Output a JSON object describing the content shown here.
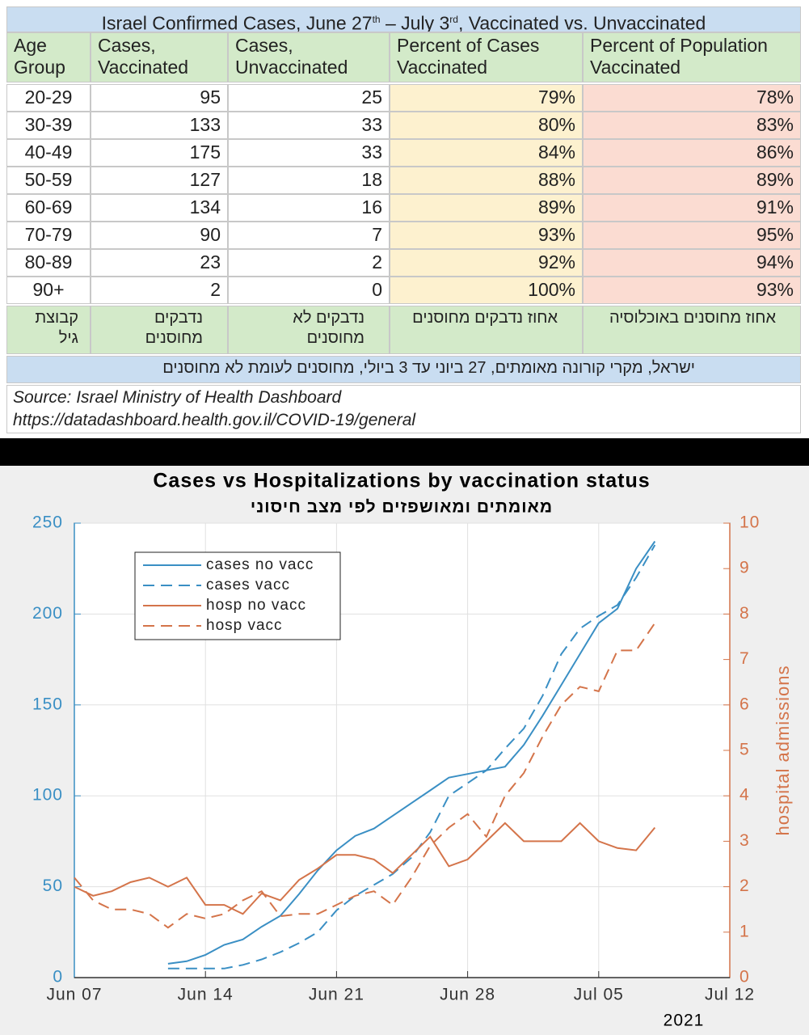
{
  "table": {
    "title_parts": [
      "Israel Confirmed Cases, June 27",
      "th",
      " – July 3",
      "rd",
      ", Vaccinated vs. Unvaccinated"
    ],
    "header": [
      "Age Group",
      "Cases, Vaccinated",
      "Cases, Unvaccinated",
      "Percent of Cases Vaccinated",
      "Percent of Population Vaccinated"
    ],
    "rows": [
      [
        "20-29",
        "95",
        "25",
        "79%",
        "78%"
      ],
      [
        "30-39",
        "133",
        "33",
        "80%",
        "83%"
      ],
      [
        "40-49",
        "175",
        "33",
        "84%",
        "86%"
      ],
      [
        "50-59",
        "127",
        "18",
        "88%",
        "89%"
      ],
      [
        "60-69",
        "134",
        "16",
        "89%",
        "91%"
      ],
      [
        "70-79",
        "90",
        "7",
        "93%",
        "95%"
      ],
      [
        "80-89",
        "23",
        "2",
        "92%",
        "94%"
      ],
      [
        "90+",
        "2",
        "0",
        "100%",
        "93%"
      ]
    ],
    "hebrew_header": [
      "קבוצת גיל",
      "נדבקים מחוסנים",
      "נדבקים לא מחוסנים",
      "אחוז נדבקים מחוסנים",
      "אחוז מחוסנים באוכלוסיה"
    ],
    "hebrew_caption": "ישראל, מקרי קורונה מאומתים, 27 ביוני עד 3 ביולי, מחוסנים לעומת לא מחוסנים",
    "source": [
      "Source: Israel Ministry of Health Dashboard",
      "https://datadashboard.health.gov.il/COVID-19/general"
    ]
  },
  "chart_data": {
    "type": "line",
    "title": "Cases vs Hospitalizations by vaccination status",
    "subtitle": "מאומתים ומאושפזים לפי מצב חיסוני",
    "y2label": "hospital admissions",
    "x_year_label": "2021",
    "x": [
      "2021-06-07",
      "2021-06-08",
      "2021-06-09",
      "2021-06-10",
      "2021-06-11",
      "2021-06-12",
      "2021-06-13",
      "2021-06-14",
      "2021-06-15",
      "2021-06-16",
      "2021-06-17",
      "2021-06-18",
      "2021-06-19",
      "2021-06-20",
      "2021-06-21",
      "2021-06-22",
      "2021-06-23",
      "2021-06-24",
      "2021-06-25",
      "2021-06-26",
      "2021-06-27",
      "2021-06-28",
      "2021-06-29",
      "2021-06-30",
      "2021-07-01",
      "2021-07-02",
      "2021-07-03",
      "2021-07-04",
      "2021-07-05",
      "2021-07-06",
      "2021-07-07",
      "2021-07-08"
    ],
    "xlim": [
      "2021-06-07",
      "2021-07-12"
    ],
    "xticks": [
      {
        "value": "2021-06-07",
        "label": "Jun 07"
      },
      {
        "value": "2021-06-14",
        "label": "Jun 14"
      },
      {
        "value": "2021-06-21",
        "label": "Jun 21"
      },
      {
        "value": "2021-06-28",
        "label": "Jun 28"
      },
      {
        "value": "2021-07-05",
        "label": "Jul 05"
      },
      {
        "value": "2021-07-12",
        "label": "Jul 12"
      }
    ],
    "ylim": [
      0,
      250
    ],
    "yticks": [
      0,
      50,
      100,
      150,
      200,
      250
    ],
    "y2lim": [
      0,
      10
    ],
    "y2ticks": [
      0,
      1,
      2,
      3,
      4,
      5,
      6,
      7,
      8,
      9,
      10
    ],
    "grid": true,
    "legend": "upper left",
    "series": [
      {
        "name": "cases no vacc",
        "color": "#3a8fc4",
        "dash": false,
        "values": [
          null,
          null,
          null,
          null,
          null,
          7.6,
          9,
          12.5,
          18,
          21,
          28,
          34,
          46,
          59,
          70,
          78,
          82,
          89,
          96,
          103,
          110,
          112,
          114,
          116,
          128,
          144,
          161,
          178,
          195,
          203,
          225,
          240
        ]
      },
      {
        "name": "cases vacc",
        "color": "#3a8fc4",
        "dash": true,
        "values": [
          null,
          null,
          null,
          null,
          null,
          5,
          5,
          5,
          5,
          7,
          10,
          14,
          19,
          25,
          37,
          45,
          51,
          57,
          66,
          80,
          100,
          107,
          114,
          126,
          137,
          155,
          178,
          192,
          199,
          205,
          220,
          238
        ]
      },
      {
        "name": "hosp no vacc",
        "color": "#d4744a",
        "dash": false,
        "axis": "y2",
        "values": [
          2.0,
          1.8,
          1.9,
          2.1,
          2.2,
          2.0,
          2.2,
          1.6,
          1.6,
          1.4,
          1.85,
          1.7,
          2.15,
          2.4,
          2.7,
          2.7,
          2.6,
          2.3,
          2.7,
          3.1,
          2.45,
          2.6,
          3.0,
          3.4,
          3.0,
          3.0,
          3.0,
          3.4,
          3.0,
          2.85,
          2.8,
          3.3
        ]
      },
      {
        "name": "hosp vacc",
        "color": "#d4744a",
        "dash": true,
        "axis": "y2",
        "values": [
          2.2,
          1.7,
          1.5,
          1.5,
          1.4,
          1.1,
          1.4,
          1.3,
          1.4,
          1.7,
          1.9,
          1.35,
          1.4,
          1.4,
          1.6,
          1.8,
          1.9,
          1.6,
          2.2,
          2.9,
          3.3,
          3.6,
          3.1,
          4.0,
          4.5,
          5.3,
          6.0,
          6.4,
          6.3,
          7.2,
          7.2,
          7.8
        ]
      }
    ]
  }
}
